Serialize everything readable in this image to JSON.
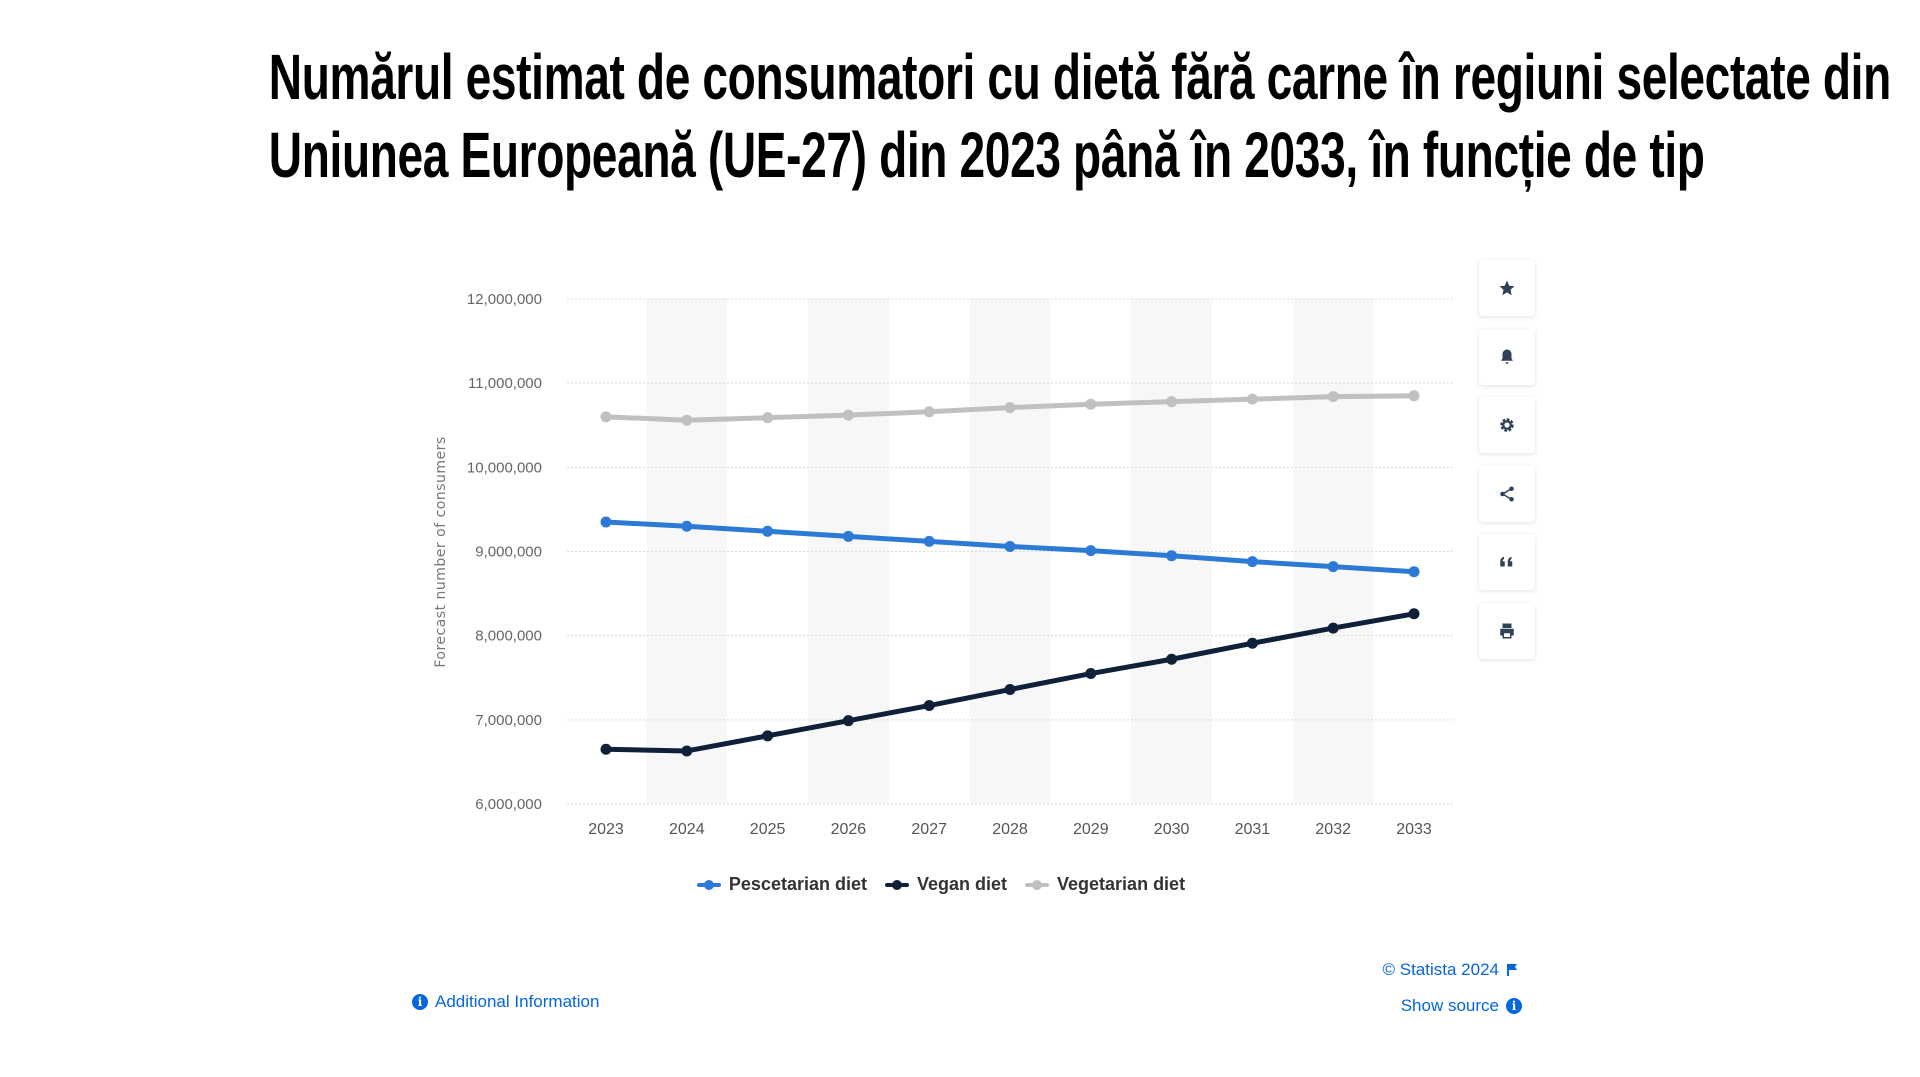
{
  "title": {
    "line1": "Numărul estimat de consumatori cu dietă fără carne în regiuni selectate din",
    "line2": "Uniunea Europeană (UE-27) din 2023 până în 2033, în funcție de tip"
  },
  "toolbar": {
    "icons": [
      "star-icon",
      "bell-icon",
      "gear-icon",
      "share-icon",
      "quote-icon",
      "print-icon"
    ]
  },
  "footer": {
    "additional_info": "Additional Information",
    "copyright": "© Statista 2024",
    "show_source": "Show source"
  },
  "colors": {
    "pescetarian": "#2d7ad6",
    "vegan": "#0f2038",
    "vegetarian": "#c0c0c0",
    "link": "#0666e0"
  },
  "chart_data": {
    "type": "line",
    "title": "",
    "xlabel": "",
    "ylabel": "Forecast number of consumers",
    "ylim": [
      6000000,
      12000000
    ],
    "yticks": [
      6000000,
      7000000,
      8000000,
      9000000,
      10000000,
      11000000,
      12000000
    ],
    "ytick_labels": [
      "6,000,000",
      "7,000,000",
      "8,000,000",
      "9,000,000",
      "10,000,000",
      "11,000,000",
      "12,000,000"
    ],
    "grid": true,
    "legend_position": "bottom",
    "categories": [
      "2023",
      "2024",
      "2025",
      "2026",
      "2027",
      "2028",
      "2029",
      "2030",
      "2031",
      "2032",
      "2033"
    ],
    "series": [
      {
        "name": "Pescetarian diet",
        "color": "#2d7ad6",
        "values": [
          9350000,
          9300000,
          9240000,
          9180000,
          9120000,
          9060000,
          9010000,
          8950000,
          8880000,
          8820000,
          8760000
        ]
      },
      {
        "name": "Vegan diet",
        "color": "#0f2038",
        "values": [
          6650000,
          6630000,
          6810000,
          6990000,
          7170000,
          7360000,
          7550000,
          7720000,
          7910000,
          8090000,
          8260000
        ]
      },
      {
        "name": "Vegetarian diet",
        "color": "#c0c0c0",
        "values": [
          10600000,
          10560000,
          10590000,
          10620000,
          10660000,
          10710000,
          10750000,
          10780000,
          10810000,
          10840000,
          10850000
        ]
      }
    ]
  }
}
